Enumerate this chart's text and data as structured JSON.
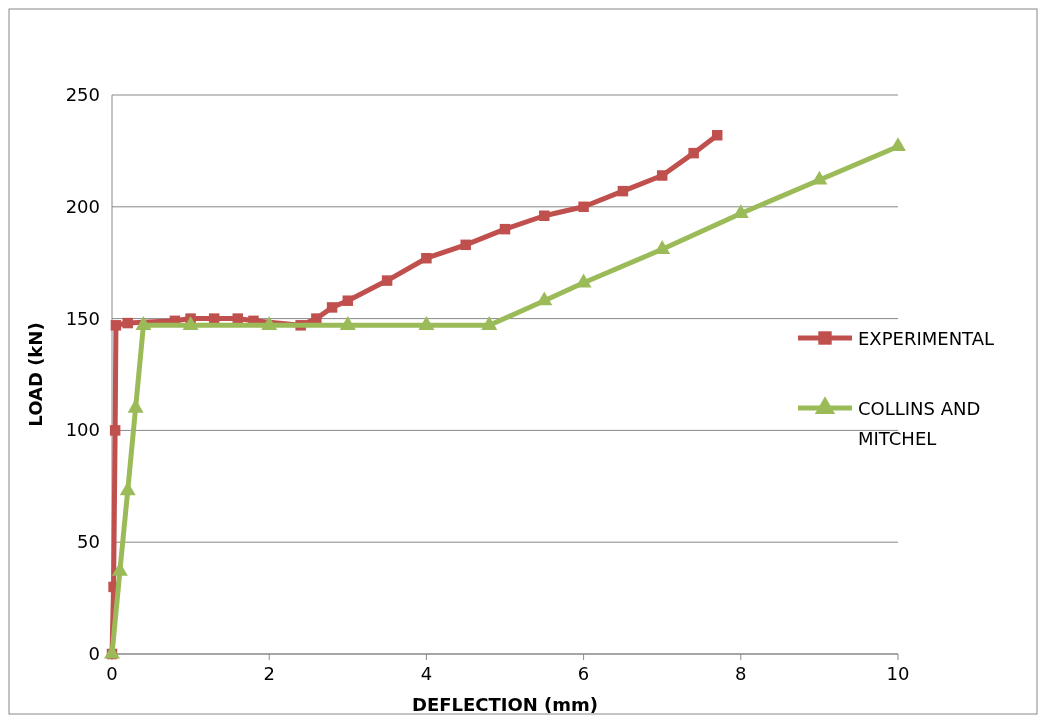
{
  "chart_data": {
    "type": "line",
    "xlabel": "DEFLECTION (mm)",
    "ylabel": "LOAD (kN)",
    "xlim": [
      0,
      10
    ],
    "ylim": [
      0,
      250
    ],
    "xticks": [
      0,
      2,
      4,
      6,
      8,
      10
    ],
    "yticks": [
      0,
      50,
      100,
      150,
      200,
      250
    ],
    "grid": "y",
    "legend": "right",
    "series": [
      {
        "name": "EXPERIMENTAL",
        "color": "#c0504d",
        "marker": "square",
        "x": [
          0,
          0.02,
          0.04,
          0.05,
          0.2,
          0.8,
          1,
          1.3,
          1.6,
          1.8,
          2.4,
          2.6,
          2.8,
          3,
          3.5,
          4,
          4.5,
          5,
          5.5,
          6,
          6.5,
          7,
          7.4,
          7.7
        ],
        "values": [
          0,
          30,
          100,
          147,
          148,
          149,
          150,
          150,
          150,
          149,
          147,
          150,
          155,
          158,
          167,
          177,
          183,
          190,
          196,
          200,
          207,
          214,
          224,
          232
        ]
      },
      {
        "name": "COLLINS AND MITCHEL",
        "color": "#9bbb59",
        "marker": "triangle",
        "x": [
          0,
          0.1,
          0.2,
          0.3,
          0.4,
          1,
          2,
          3,
          4,
          4.8,
          5.5,
          6,
          7,
          8,
          9,
          10
        ],
        "values": [
          0,
          37,
          73,
          110,
          147,
          147,
          147,
          147,
          147,
          147,
          158,
          166,
          181,
          197,
          212,
          227
        ]
      }
    ]
  }
}
